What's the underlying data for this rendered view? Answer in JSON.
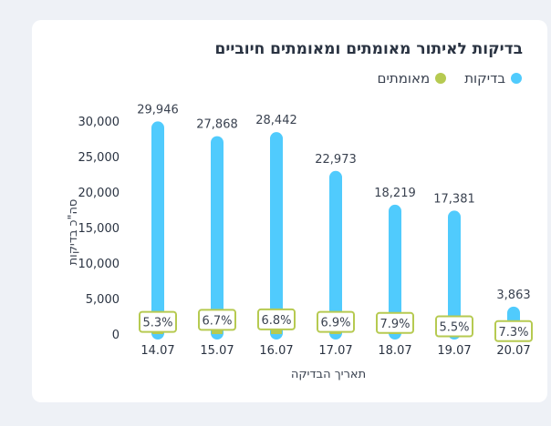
{
  "chart_data": {
    "type": "bar",
    "title": "בדיקות לאיתור מאומתים ומאומתים חיוביים",
    "xlabel": "תאריך הבדיקה",
    "ylabel": "סה\"כ בדיקות",
    "ylim": [
      0,
      30000
    ],
    "yticks": [
      "0",
      "5,000",
      "10,000",
      "15,000",
      "20,000",
      "25,000",
      "30,000"
    ],
    "ytick_values": [
      0,
      5000,
      10000,
      15000,
      20000,
      25000,
      30000
    ],
    "categories": [
      "14.07",
      "15.07",
      "16.07",
      "17.07",
      "18.07",
      "19.07",
      "20.07"
    ],
    "legend_position": "top-right",
    "grid": false,
    "series": [
      {
        "name": "בדיקות",
        "color": "#50cbfd",
        "values": [
          29946,
          27868,
          28442,
          22973,
          18219,
          17381,
          3863
        ],
        "labels": [
          "29,946",
          "27,868",
          "28,442",
          "22,973",
          "18,219",
          "17,381",
          "3,863"
        ]
      },
      {
        "name": "מאומתים",
        "color": "#b6ca51",
        "values": [
          1587,
          1867,
          1934,
          1585,
          1439,
          956,
          282
        ],
        "percent_labels": [
          "5.3%",
          "6.7%",
          "6.8%",
          "6.9%",
          "7.9%",
          "5.5%",
          "7.3%"
        ]
      }
    ]
  }
}
